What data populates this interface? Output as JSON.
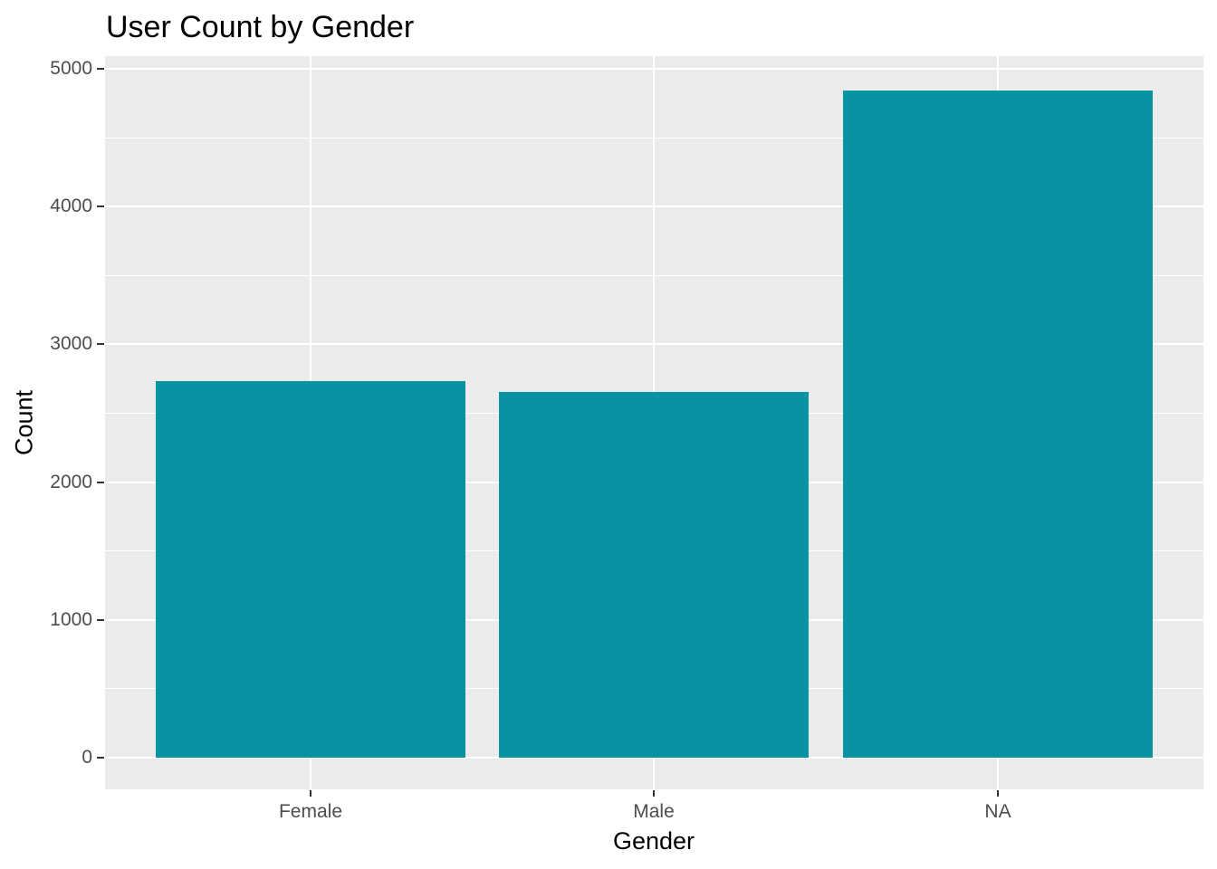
{
  "chart_data": {
    "type": "bar",
    "title": "User Count by Gender",
    "xlabel": "Gender",
    "ylabel": "Count",
    "categories": [
      "Female",
      "Male",
      "NA"
    ],
    "values": [
      2730,
      2655,
      4845
    ],
    "ylim": [
      0,
      5000
    ],
    "yticks": [
      0,
      1000,
      2000,
      3000,
      4000,
      5000
    ],
    "yticks_minor": [
      500,
      1500,
      2500,
      3500,
      4500
    ],
    "legend_position": "none",
    "grid": "major and minor, white on gray panel",
    "colors": {
      "bar_fill": "#0893A3",
      "panel_background": "#EBEBEB",
      "gridline": "#FFFFFF",
      "axis_text": "#4D4D4D",
      "tick_mark": "#333333",
      "title_text": "#000000",
      "page_background": "#FFFFFF"
    }
  }
}
